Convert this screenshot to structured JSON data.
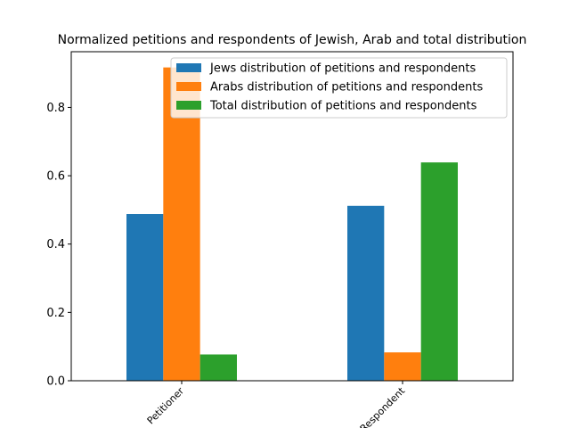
{
  "chart_data": {
    "type": "bar",
    "title": "Normalized petitions and respondents of Jewish, Arab and total  distribution",
    "xlabel": "",
    "ylabel": "",
    "categories": [
      "Petitioner",
      "Respondent"
    ],
    "series": [
      {
        "name": "Jews distribution of petitions and respondents",
        "values": [
          0.488,
          0.512
        ],
        "color": "#1f77b4"
      },
      {
        "name": "Arabs distribution of petitions and respondents",
        "values": [
          0.917,
          0.083
        ],
        "color": "#ff7f0e"
      },
      {
        "name": "Total distribution of petitions and respondents",
        "values": [
          0.077,
          0.639
        ],
        "color": "#2ca02c"
      }
    ],
    "ylim": [
      0,
      0.963
    ],
    "yticks": [
      0.0,
      0.2,
      0.4,
      0.6,
      0.8
    ],
    "ytick_labels": [
      "0.0",
      "0.2",
      "0.4",
      "0.6",
      "0.8"
    ],
    "legend_position": "top-right",
    "grid": false
  }
}
